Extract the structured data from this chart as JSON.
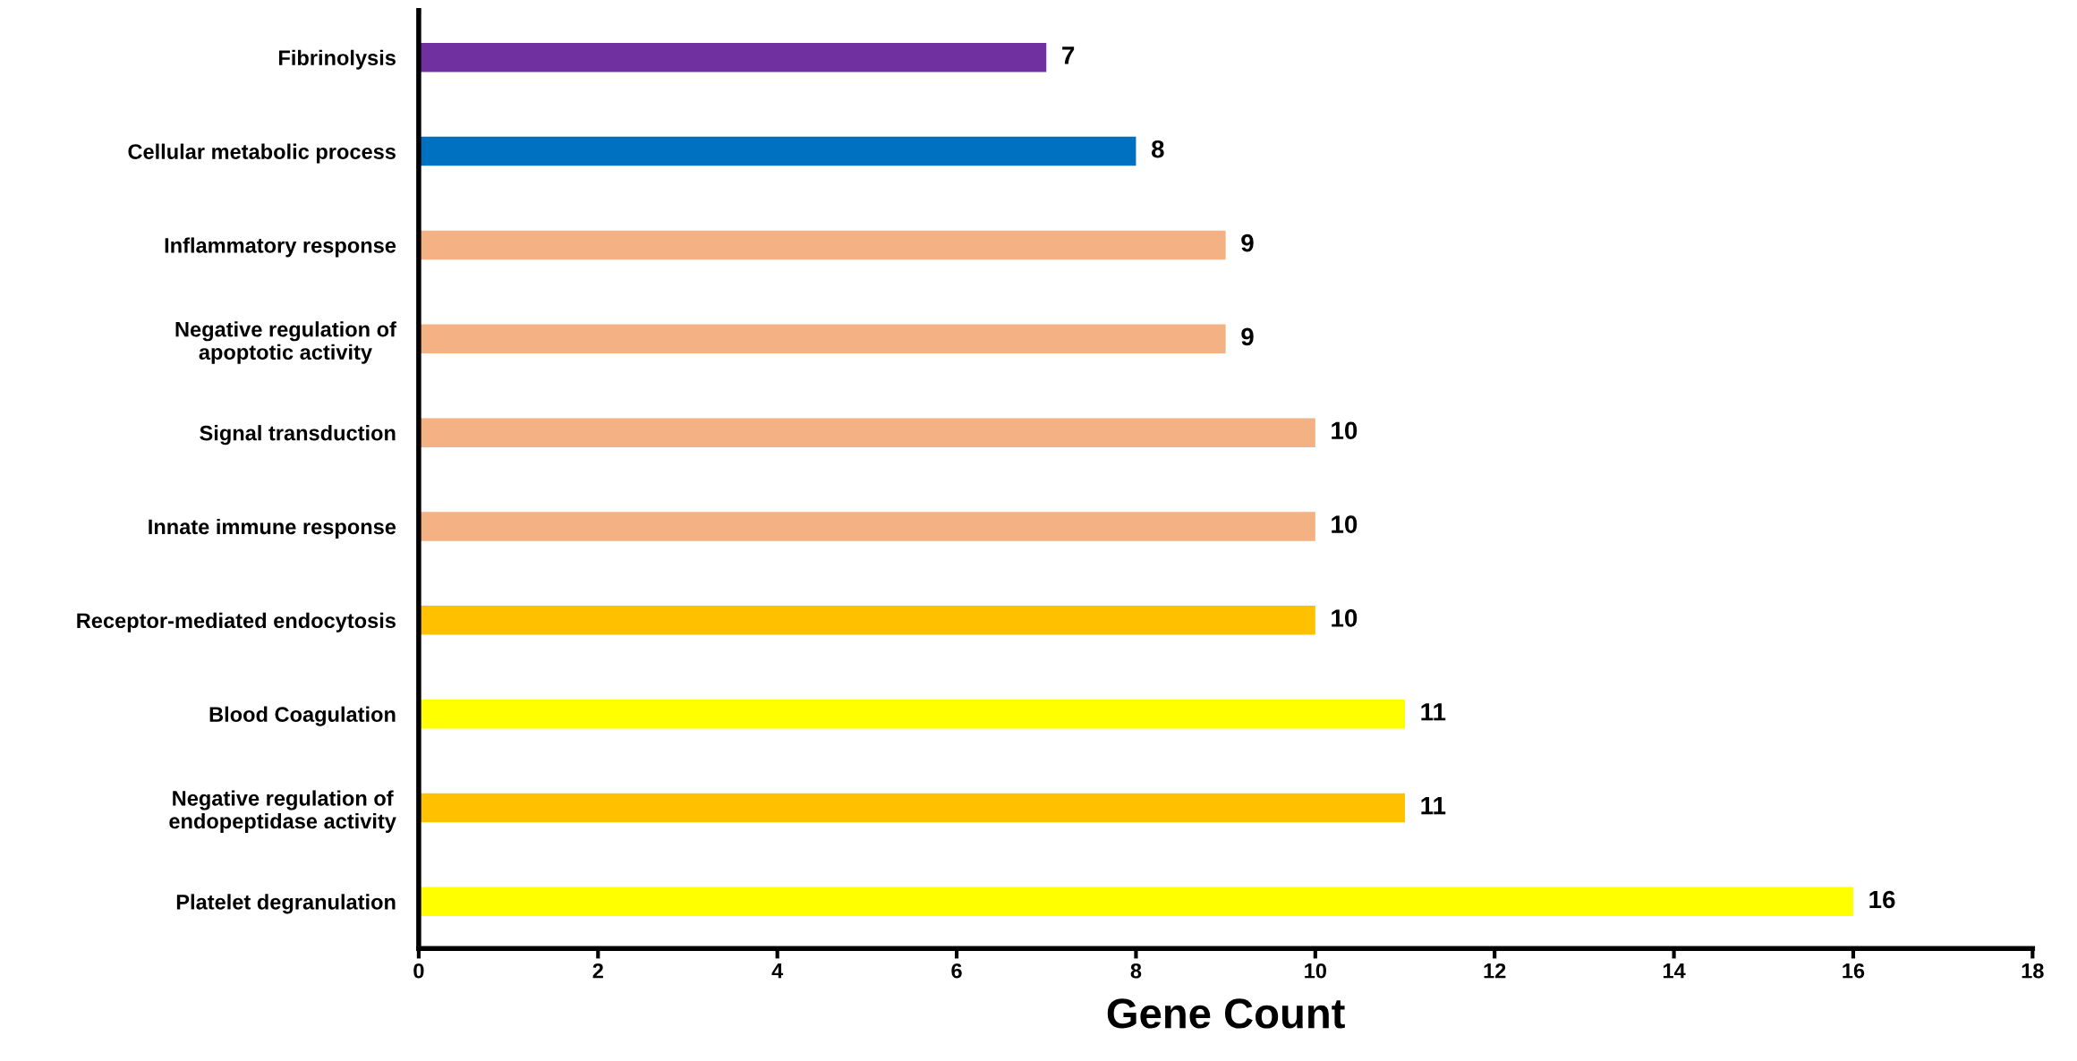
{
  "chart_data": {
    "type": "bar",
    "orientation": "horizontal",
    "xlabel": "Gene Count",
    "categories": [
      "Fibrinolysis",
      "Cellular metabolic process",
      "Inflammatory response",
      "Negative regulation of\napoptotic activity",
      "Signal transduction",
      "Innate immune response",
      "Receptor-mediated endocytosis",
      "Blood Coagulation",
      "Negative regulation of\nendopeptidase activity",
      "Platelet degranulation"
    ],
    "values": [
      7,
      8,
      9,
      9,
      10,
      10,
      10,
      11,
      11,
      16
    ],
    "colors": [
      "#7030a0",
      "#0070c0",
      "#f4b183",
      "#f4b183",
      "#f4b183",
      "#f4b183",
      "#ffc000",
      "#ffff00",
      "#ffc000",
      "#ffff00"
    ],
    "xlim": [
      0,
      18
    ],
    "xticks": [
      0,
      2,
      4,
      6,
      8,
      10,
      12,
      14,
      16,
      18
    ],
    "data_labels": true,
    "grid": false,
    "legend": false
  }
}
